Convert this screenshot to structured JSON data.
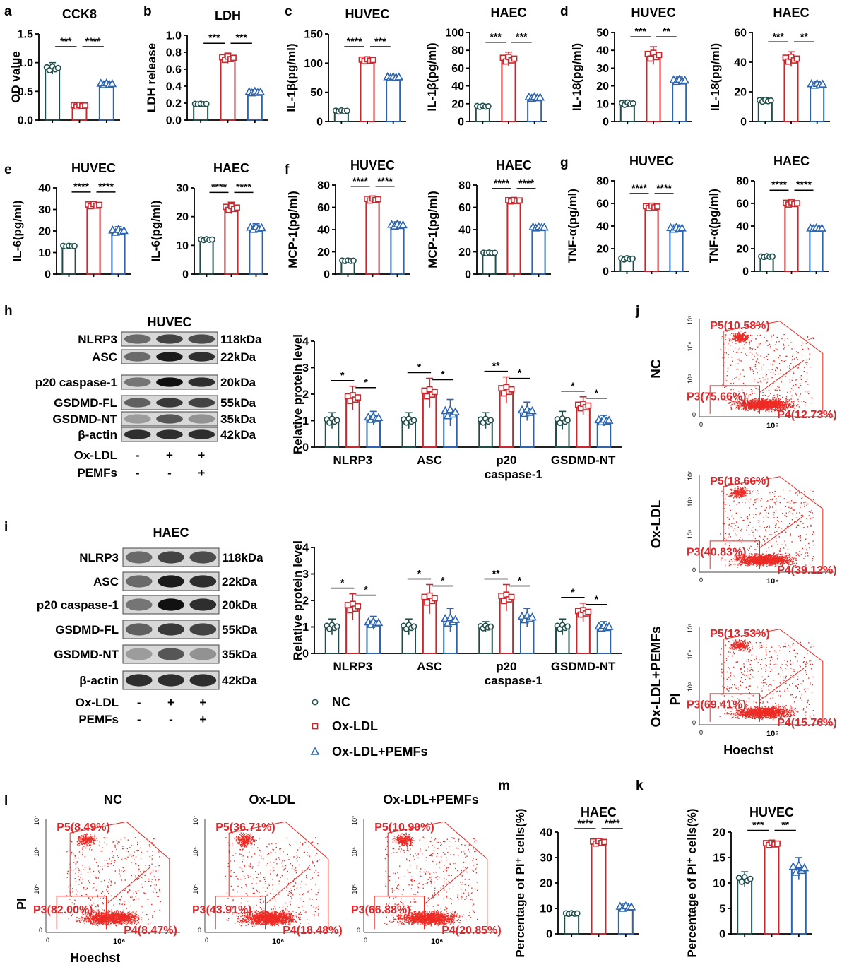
{
  "colors": {
    "nc": "#1f4e4c",
    "ox": "#c8272d",
    "pemf": "#2c64b0",
    "flow": "#ee2a24"
  },
  "groups": [
    "NC",
    "Ox-LDL",
    "Ox-LDL+PEMFs"
  ],
  "legend": {
    "nc": "NC",
    "ox": "Ox-LDL",
    "pemf": "Ox-LDL+PEMFs"
  },
  "chart_data": [
    {
      "id": "a",
      "letter": "a",
      "type": "bar",
      "title": "CCK8",
      "ylabel": "OD value",
      "ylim": [
        0,
        1.5
      ],
      "ticks": [
        "0.0",
        "0.5",
        "1.0",
        "1.5"
      ],
      "values": [
        0.9,
        0.25,
        0.63
      ],
      "errors": [
        0.1,
        0.04,
        0.05
      ],
      "sig": [
        "***",
        "****"
      ]
    },
    {
      "id": "b",
      "letter": "b",
      "type": "bar",
      "title": "LDH",
      "ylabel": "LDH release",
      "ylim": [
        0,
        1.0
      ],
      "ticks": [
        "0.0",
        "0.2",
        "0.4",
        "0.6",
        "0.8",
        "1.0"
      ],
      "values": [
        0.19,
        0.73,
        0.33
      ],
      "errors": [
        0.01,
        0.06,
        0.03
      ],
      "sig": [
        "***",
        "***"
      ]
    },
    {
      "id": "c1",
      "letter": "c",
      "type": "bar",
      "title": "HUVEC",
      "ylabel": "IL-1β(pg/ml)",
      "ylim": [
        0,
        150
      ],
      "ticks": [
        "0",
        "50",
        "100",
        "150"
      ],
      "values": [
        18,
        105,
        76
      ],
      "errors": [
        3,
        5,
        3
      ],
      "sig": [
        "****",
        "***"
      ]
    },
    {
      "id": "c2",
      "type": "bar",
      "title": "HAEC",
      "ylabel": "IL-1β(pg/ml)",
      "ylim": [
        0,
        100
      ],
      "ticks": [
        "0",
        "20",
        "40",
        "60",
        "80",
        "100"
      ],
      "values": [
        17,
        70,
        27
      ],
      "errors": [
        2,
        8,
        3
      ],
      "sig": [
        "***",
        "***"
      ]
    },
    {
      "id": "d1",
      "letter": "d",
      "type": "bar",
      "title": "HUVEC",
      "ylabel": "IL-18(pg/ml)",
      "ylim": [
        0,
        50
      ],
      "ticks": [
        "0",
        "10",
        "20",
        "30",
        "40",
        "50"
      ],
      "values": [
        10,
        37,
        23
      ],
      "errors": [
        2,
        5,
        2
      ],
      "sig": [
        "***",
        "**"
      ]
    },
    {
      "id": "d2",
      "type": "bar",
      "title": "HAEC",
      "ylabel": "IL-18(pg/ml)",
      "ylim": [
        0,
        60
      ],
      "ticks": [
        "0",
        "20",
        "40",
        "60"
      ],
      "values": [
        14,
        42,
        25
      ],
      "errors": [
        2,
        5,
        2
      ],
      "sig": [
        "***",
        "**"
      ]
    },
    {
      "id": "e1",
      "letter": "e",
      "type": "bar",
      "title": "HUVEC",
      "ylabel": "IL-6(pg/ml)",
      "ylim": [
        0,
        40
      ],
      "ticks": [
        "0",
        "10",
        "20",
        "30",
        "40"
      ],
      "values": [
        13,
        32,
        20
      ],
      "errors": [
        0.5,
        1.5,
        2
      ],
      "sig": [
        "****",
        "****"
      ]
    },
    {
      "id": "e2",
      "type": "bar",
      "title": "HAEC",
      "ylabel": "IL-6(pg/ml)",
      "ylim": [
        0,
        30
      ],
      "ticks": [
        "0",
        "10",
        "20",
        "30"
      ],
      "values": [
        12,
        23,
        16
      ],
      "errors": [
        0.5,
        2,
        1.5
      ],
      "sig": [
        "****",
        "****"
      ]
    },
    {
      "id": "f1",
      "letter": "f",
      "type": "bar",
      "title": "HUVEC",
      "ylabel": "MCP-1(pg/ml)",
      "ylim": [
        0,
        80
      ],
      "ticks": [
        "0",
        "20",
        "40",
        "60",
        "80"
      ],
      "values": [
        12,
        67,
        44
      ],
      "errors": [
        1,
        3,
        3
      ],
      "sig": [
        "****",
        "****"
      ]
    },
    {
      "id": "f2",
      "type": "bar",
      "title": "HAEC",
      "ylabel": "MCP-1(pg/ml)",
      "ylim": [
        0,
        80
      ],
      "ticks": [
        "0",
        "20",
        "40",
        "60",
        "80"
      ],
      "values": [
        19,
        66,
        42
      ],
      "errors": [
        1,
        2,
        2
      ],
      "sig": [
        "****",
        "****"
      ]
    },
    {
      "id": "g1",
      "letter": "g",
      "type": "bar",
      "title": "HUVEC",
      "ylabel": "TNF-α(pg/ml)",
      "ylim": [
        0,
        80
      ],
      "ticks": [
        "0",
        "20",
        "40",
        "60",
        "80"
      ],
      "values": [
        11,
        57,
        38
      ],
      "errors": [
        2,
        3,
        3
      ],
      "sig": [
        "****",
        "****"
      ]
    },
    {
      "id": "g2",
      "type": "bar",
      "title": "HAEC",
      "ylabel": "TNF-α(pg/ml)",
      "ylim": [
        0,
        80
      ],
      "ticks": [
        "0",
        "20",
        "40",
        "60",
        "80"
      ],
      "values": [
        13,
        60,
        38
      ],
      "errors": [
        1,
        3,
        1
      ],
      "sig": [
        "****",
        "****"
      ]
    },
    {
      "id": "h",
      "type": "grouped-bar",
      "ylabel": "Relative protein level",
      "ylim": [
        0,
        4
      ],
      "ticks": [
        "0",
        "1",
        "2",
        "3",
        "4"
      ],
      "categories": [
        "NLRP3",
        "ASC",
        "p20 caspase-1",
        "GSDMD-NT"
      ],
      "series": [
        {
          "name": "NC",
          "values": [
            1.0,
            1.0,
            1.0,
            1.0
          ],
          "errors": [
            0.3,
            0.3,
            0.3,
            0.35
          ]
        },
        {
          "name": "Ox-LDL",
          "values": [
            1.85,
            2.05,
            2.15,
            1.55
          ],
          "errors": [
            0.45,
            0.55,
            0.5,
            0.35
          ]
        },
        {
          "name": "Ox-LDL+PEMFs",
          "values": [
            1.1,
            1.3,
            1.35,
            1.0
          ],
          "errors": [
            0.25,
            0.5,
            0.35,
            0.2
          ]
        }
      ],
      "sig": [
        [
          "*",
          "*"
        ],
        [
          "*",
          "*"
        ],
        [
          "**",
          "*"
        ],
        [
          "*",
          "*"
        ]
      ]
    },
    {
      "id": "i",
      "type": "grouped-bar",
      "ylabel": "Relative protein level",
      "ylim": [
        0,
        4
      ],
      "ticks": [
        "0",
        "1",
        "2",
        "3",
        "4"
      ],
      "categories": [
        "NLRP3",
        "ASC",
        "p20 caspase-1",
        "GSDMD-NT"
      ],
      "series": [
        {
          "name": "NC",
          "values": [
            1.0,
            1.0,
            1.0,
            1.0
          ],
          "errors": [
            0.3,
            0.3,
            0.2,
            0.3
          ]
        },
        {
          "name": "Ox-LDL",
          "values": [
            1.75,
            2.05,
            2.1,
            1.55
          ],
          "errors": [
            0.5,
            0.55,
            0.5,
            0.35
          ]
        },
        {
          "name": "Ox-LDL+PEMFs",
          "values": [
            1.15,
            1.25,
            1.35,
            1.0
          ],
          "errors": [
            0.25,
            0.45,
            0.35,
            0.2
          ]
        }
      ],
      "sig": [
        [
          "*",
          "*"
        ],
        [
          "*",
          "*"
        ],
        [
          "**",
          "*"
        ],
        [
          "*",
          "*"
        ]
      ]
    },
    {
      "id": "m",
      "letter": "m",
      "type": "bar",
      "title": "HAEC",
      "ylabel": "Percentage of PI⁺ cells(%)",
      "ylim": [
        0,
        40
      ],
      "ticks": [
        "0",
        "10",
        "20",
        "30",
        "40"
      ],
      "values": [
        8,
        36,
        10.5
      ],
      "errors": [
        0.5,
        1.5,
        1.5
      ],
      "sig": [
        "****",
        "****"
      ]
    },
    {
      "id": "k",
      "letter": "k",
      "type": "bar",
      "title": "HUVEC",
      "ylabel": "Percentage of PI⁺ cells(%)",
      "ylim": [
        0,
        20
      ],
      "ticks": [
        "0",
        "5",
        "10",
        "15",
        "20"
      ],
      "values": [
        10.7,
        17.7,
        12.8
      ],
      "errors": [
        1.5,
        0.7,
        2.2
      ],
      "sig": [
        "***",
        "**"
      ]
    }
  ],
  "westerns": {
    "h": {
      "letter": "h",
      "title": "HUVEC",
      "rows": [
        {
          "label": "NLRP3",
          "kda": "118kDa"
        },
        {
          "label": "ASC",
          "kda": "22kDa"
        },
        {
          "label": "p20 caspase-1",
          "kda": "20kDa"
        },
        {
          "label": "GSDMD-FL",
          "kda": "55kDa"
        },
        {
          "label": "GSDMD-NT",
          "kda": "35kDa"
        },
        {
          "label": "β-actin",
          "kda": "42kDa"
        }
      ],
      "treat": [
        {
          "label": "Ox-LDL",
          "signs": [
            "-",
            "+",
            "+"
          ]
        },
        {
          "label": "PEMFs",
          "signs": [
            "-",
            "-",
            "+"
          ]
        }
      ]
    },
    "i": {
      "letter": "i",
      "title": "HAEC",
      "rows": [
        {
          "label": "NLRP3",
          "kda": "118kDa"
        },
        {
          "label": "ASC",
          "kda": "22kDa"
        },
        {
          "label": "p20 caspase-1",
          "kda": "20kDa"
        },
        {
          "label": "GSDMD-FL",
          "kda": "55kDa"
        },
        {
          "label": "GSDMD-NT",
          "kda": "35kDa"
        },
        {
          "label": "β-actin",
          "kda": "42kDa"
        }
      ],
      "treat": [
        {
          "label": "Ox-LDL",
          "signs": [
            "-",
            "+",
            "+"
          ]
        },
        {
          "label": "PEMFs",
          "signs": [
            "-",
            "-",
            "+"
          ]
        }
      ]
    }
  },
  "flow": {
    "j": {
      "letter": "j",
      "plots": [
        {
          "label": "NC",
          "p5": "P5(10.58%)",
          "p3": "P3(75.66%)",
          "p4": "P4(12.73%)"
        },
        {
          "label": "Ox-LDL",
          "p5": "P5(18.66%)",
          "p3": "P3(40.83%)",
          "p4": "P4(39.12%)"
        },
        {
          "label": "Ox-LDL+PEMFs",
          "p5": "P5(13.53%)",
          "p3": "P3(69.41%)",
          "p4": "P4(15.76%)"
        }
      ],
      "xaxis": "Hoechst",
      "yaxis": "PI",
      "xtick": "10⁶",
      "ytick_top": "10⁷",
      "ytick_mid1": "10⁶",
      "ytick_mid2": "10⁵",
      "xtick0": "0",
      "ytick0": "0"
    },
    "l": {
      "letter": "l",
      "plots": [
        {
          "label": "NC",
          "p5": "P5(8.49%)",
          "p3": "P3(82.00%)",
          "p4": "P4(8.47%)"
        },
        {
          "label": "Ox-LDL",
          "p5": "P5(36.71%)",
          "p3": "P3(43.91%)",
          "p4": "P4(18.48%)"
        },
        {
          "label": "Ox-LDL+PEMFs",
          "p5": "P5(10.90%)",
          "p3": "P3(66.88%)",
          "p4": "P4(20.85%)"
        }
      ],
      "xaxis": "Hoechst",
      "yaxis": "PI",
      "xtick": "10⁶",
      "ytick_top": "10⁷",
      "ytick_mid1": "10⁶",
      "ytick_mid2": "10⁵",
      "xtick0": "0",
      "ytick0": "0"
    }
  }
}
